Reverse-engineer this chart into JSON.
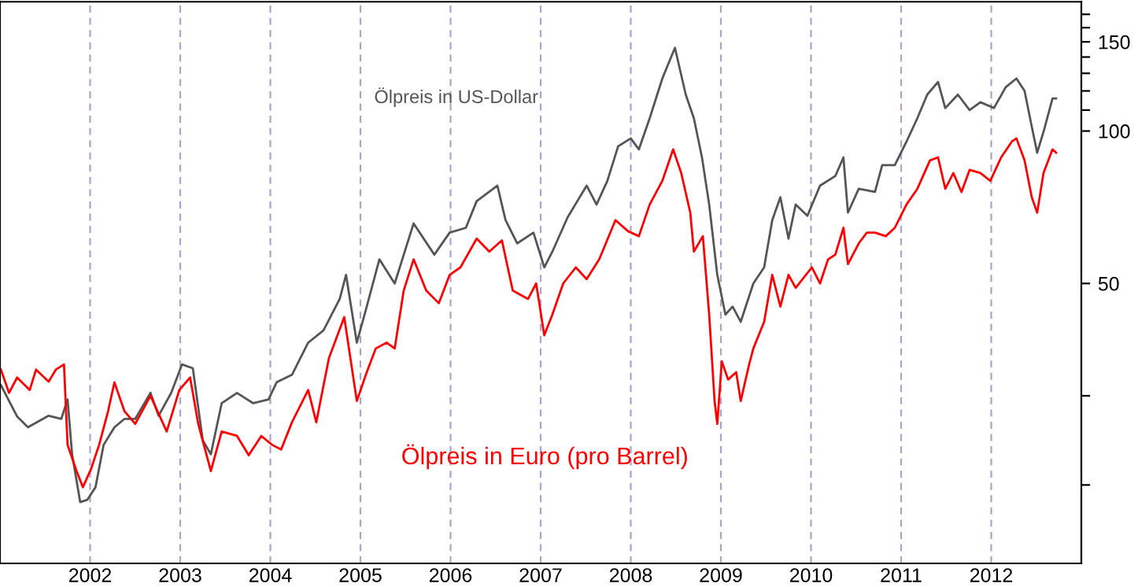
{
  "chart_data": {
    "type": "line",
    "log": "y",
    "grid": "x",
    "legend": false,
    "xlim": [
      2001.0,
      2013.0
    ],
    "xticks": [
      2002,
      2003,
      2004,
      2005,
      2006,
      2007,
      2008,
      2009,
      2010,
      2011,
      2012
    ],
    "ylim": [
      14,
      180
    ],
    "yticks": [
      {
        "value": 20,
        "label": null
      },
      {
        "value": 30,
        "label": null
      },
      50,
      100,
      {
        "value": 110,
        "label": null
      },
      {
        "value": 120,
        "label": null
      },
      {
        "value": 130,
        "label": null
      },
      {
        "value": 140,
        "label": null
      },
      150,
      {
        "value": 160,
        "label": null
      },
      {
        "value": 170,
        "label": null
      }
    ],
    "series": [
      {
        "name": "Ölpreis in US-Dollar",
        "color": "#555555",
        "x": [
          2001.01,
          2001.19,
          2001.31,
          2001.54,
          2001.68,
          2001.75,
          2001.8,
          2001.89,
          2001.97,
          2002.06,
          2002.15,
          2002.27,
          2002.38,
          2002.5,
          2002.67,
          2002.76,
          2002.9,
          2003.02,
          2003.14,
          2003.25,
          2003.34,
          2003.46,
          2003.63,
          2003.81,
          2003.98,
          2004.07,
          2004.24,
          2004.42,
          2004.59,
          2004.77,
          2004.84,
          2004.96,
          2005.07,
          2005.21,
          2005.38,
          2005.59,
          2005.82,
          2005.99,
          2006.17,
          2006.29,
          2006.52,
          2006.61,
          2006.74,
          2006.92,
          2007.04,
          2007.13,
          2007.3,
          2007.51,
          2007.62,
          2007.74,
          2007.86,
          2008.0,
          2008.09,
          2008.21,
          2008.35,
          2008.49,
          2008.61,
          2008.7,
          2008.79,
          2008.87,
          2008.96,
          2009.05,
          2009.13,
          2009.22,
          2009.36,
          2009.48,
          2009.57,
          2009.66,
          2009.75,
          2009.83,
          2009.96,
          2010.1,
          2010.27,
          2010.36,
          2010.41,
          2010.53,
          2010.71,
          2010.79,
          2010.93,
          2011.06,
          2011.18,
          2011.29,
          2011.41,
          2011.49,
          2011.63,
          2011.76,
          2011.88,
          2012.03,
          2012.16,
          2012.28,
          2012.37,
          2012.45,
          2012.51,
          2012.59,
          2012.68,
          2012.72
        ],
        "values": [
          31.5,
          27.3,
          26,
          27.4,
          27,
          29.5,
          23,
          18.5,
          18.7,
          19.8,
          24,
          26,
          27,
          27,
          30.4,
          27.4,
          30.4,
          34.6,
          34,
          24.5,
          23,
          29,
          30.4,
          29,
          29.5,
          31.9,
          33,
          38.2,
          40.4,
          46.6,
          52,
          38.2,
          45,
          55.8,
          50,
          65.7,
          57,
          63,
          64.4,
          72.7,
          78,
          66.7,
          60,
          63,
          53.8,
          57.8,
          67.6,
          78,
          71.6,
          79.7,
          93.3,
          96.7,
          92,
          106,
          127,
          146,
          118,
          106,
          88.7,
          71.6,
          52,
          43.4,
          45,
          42,
          50,
          53.8,
          66.7,
          74,
          61.3,
          71.6,
          68,
          78,
          81.5,
          88.7,
          69,
          76.9,
          75.8,
          85.6,
          85.6,
          95.3,
          106,
          118,
          125,
          111,
          118,
          110,
          114,
          111,
          122,
          127,
          120,
          102,
          90.6,
          101,
          116,
          116
        ]
      },
      {
        "name": "Ölpreis in Euro (pro Barrel)",
        "color": "#ff0000",
        "x": [
          2001.01,
          2001.1,
          2001.19,
          2001.33,
          2001.4,
          2001.54,
          2001.62,
          2001.71,
          2001.75,
          2001.85,
          2001.92,
          2002.01,
          2002.1,
          2002.2,
          2002.27,
          2002.38,
          2002.5,
          2002.67,
          2002.85,
          2002.99,
          2003.11,
          2003.2,
          2003.34,
          2003.46,
          2003.63,
          2003.76,
          2003.9,
          2004.02,
          2004.12,
          2004.24,
          2004.42,
          2004.51,
          2004.65,
          2004.82,
          2004.96,
          2005.07,
          2005.17,
          2005.29,
          2005.38,
          2005.48,
          2005.59,
          2005.73,
          2005.87,
          2005.99,
          2006.11,
          2006.29,
          2006.43,
          2006.57,
          2006.69,
          2006.86,
          2006.95,
          2007.04,
          2007.13,
          2007.25,
          2007.39,
          2007.51,
          2007.65,
          2007.83,
          2007.97,
          2008.09,
          2008.21,
          2008.35,
          2008.47,
          2008.56,
          2008.66,
          2008.7,
          2008.8,
          2008.87,
          2008.93,
          2008.96,
          2009.01,
          2009.08,
          2009.17,
          2009.22,
          2009.31,
          2009.36,
          2009.48,
          2009.57,
          2009.66,
          2009.75,
          2009.83,
          2010.01,
          2010.1,
          2010.19,
          2010.27,
          2010.36,
          2010.41,
          2010.53,
          2010.62,
          2010.71,
          2010.83,
          2010.93,
          2011.06,
          2011.18,
          2011.32,
          2011.41,
          2011.49,
          2011.58,
          2011.67,
          2011.76,
          2011.88,
          2011.99,
          2012.11,
          2012.23,
          2012.28,
          2012.37,
          2012.45,
          2012.51,
          2012.58,
          2012.68,
          2012.72
        ],
        "values": [
          33.8,
          30.4,
          32.6,
          30.8,
          33.8,
          32,
          33.8,
          34.6,
          24,
          21.3,
          19.8,
          21.5,
          24,
          28,
          31.9,
          28,
          26.4,
          30,
          25.5,
          30.8,
          32.6,
          26.4,
          21.3,
          25.5,
          25,
          22.9,
          25,
          24,
          23.5,
          26.6,
          30.8,
          26.6,
          35.6,
          42.9,
          29.3,
          33.4,
          37.2,
          38.2,
          37.2,
          48.4,
          55.8,
          48.4,
          45.7,
          52,
          53.8,
          61.3,
          57.8,
          60.8,
          48.4,
          46.6,
          50,
          39.5,
          43.4,
          50,
          53.8,
          51,
          55.8,
          66.7,
          63.4,
          62,
          71.6,
          79.7,
          92,
          82.6,
          69,
          57.8,
          62,
          43.4,
          29.3,
          26.4,
          35.1,
          32.3,
          33.4,
          29.3,
          34.4,
          37.2,
          42,
          52,
          45,
          52,
          49,
          53.8,
          50,
          55.8,
          57,
          64.4,
          54.6,
          60,
          63,
          63,
          62,
          64.4,
          71.6,
          76.9,
          87.5,
          88.7,
          76.9,
          82.6,
          75.8,
          83.8,
          82.6,
          79.7,
          88.7,
          95.4,
          96.7,
          87.5,
          74,
          69,
          82.6,
          92,
          90.6
        ]
      }
    ]
  }
}
